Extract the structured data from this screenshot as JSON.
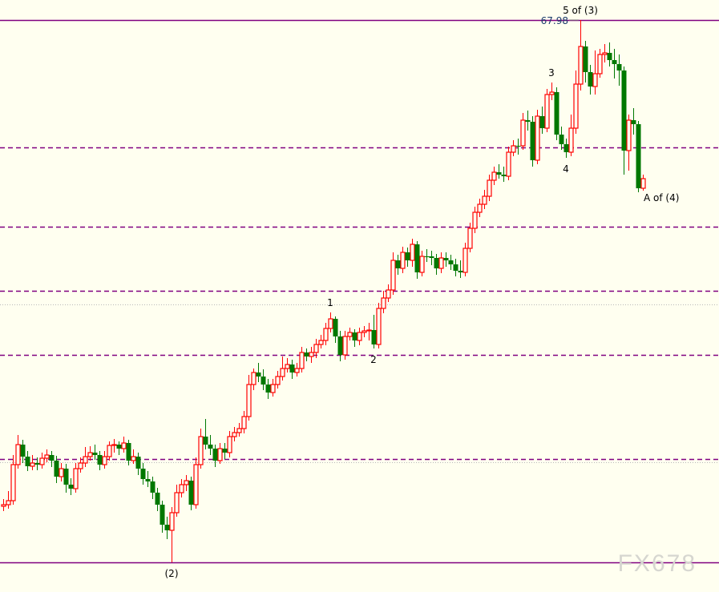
{
  "chart_data": {
    "type": "candlestick",
    "title": "",
    "grid": false,
    "colors": {
      "background": "#fffff0",
      "up": "#ff0000",
      "down": "#007800",
      "level_line": "#800080",
      "dotted_line": "#b8b8b8",
      "label_text": "#000000",
      "price_label": "#1a3a6a"
    },
    "candles": [
      [
        61.91,
        62.0,
        61.85,
        61.93
      ],
      [
        61.93,
        62.1,
        61.88,
        61.98
      ],
      [
        61.98,
        62.55,
        61.93,
        62.43
      ],
      [
        62.43,
        62.8,
        62.38,
        62.68
      ],
      [
        62.68,
        62.74,
        62.45,
        62.53
      ],
      [
        62.53,
        62.6,
        62.35,
        62.41
      ],
      [
        62.41,
        62.55,
        62.36,
        62.45
      ],
      [
        62.45,
        62.52,
        62.36,
        62.43
      ],
      [
        62.43,
        62.58,
        62.38,
        62.51
      ],
      [
        62.51,
        62.62,
        62.46,
        62.55
      ],
      [
        62.55,
        62.6,
        62.4,
        62.48
      ],
      [
        62.48,
        62.54,
        62.2,
        62.28
      ],
      [
        62.28,
        62.45,
        62.22,
        62.38
      ],
      [
        62.38,
        62.44,
        62.08,
        62.18
      ],
      [
        62.18,
        62.26,
        62.05,
        62.13
      ],
      [
        62.13,
        62.45,
        62.08,
        62.38
      ],
      [
        62.38,
        62.52,
        62.33,
        62.45
      ],
      [
        62.45,
        62.65,
        62.4,
        62.53
      ],
      [
        62.53,
        62.66,
        62.48,
        62.58
      ],
      [
        62.58,
        62.68,
        62.49,
        62.55
      ],
      [
        62.55,
        62.6,
        62.36,
        62.43
      ],
      [
        62.43,
        62.6,
        62.38,
        62.53
      ],
      [
        62.53,
        62.72,
        62.48,
        62.67
      ],
      [
        62.67,
        62.75,
        62.58,
        62.68
      ],
      [
        62.68,
        62.72,
        62.55,
        62.63
      ],
      [
        62.63,
        62.78,
        62.58,
        62.7
      ],
      [
        62.7,
        62.74,
        62.42,
        62.48
      ],
      [
        62.48,
        62.62,
        62.44,
        62.53
      ],
      [
        62.53,
        62.58,
        62.3,
        62.38
      ],
      [
        62.38,
        62.45,
        62.18,
        62.25
      ],
      [
        62.25,
        62.35,
        62.15,
        62.22
      ],
      [
        62.22,
        62.28,
        62.0,
        62.08
      ],
      [
        62.08,
        62.14,
        61.85,
        61.93
      ],
      [
        61.93,
        61.98,
        61.58,
        61.68
      ],
      [
        61.68,
        61.78,
        61.5,
        61.61
      ],
      [
        61.61,
        61.9,
        61.21,
        61.83
      ],
      [
        61.83,
        62.18,
        61.78,
        62.08
      ],
      [
        62.08,
        62.25,
        62.02,
        62.18
      ],
      [
        62.18,
        62.3,
        62.1,
        62.23
      ],
      [
        62.23,
        62.28,
        61.86,
        61.93
      ],
      [
        61.93,
        62.52,
        61.88,
        62.43
      ],
      [
        62.43,
        62.88,
        62.38,
        62.78
      ],
      [
        62.78,
        63.0,
        62.62,
        62.68
      ],
      [
        62.68,
        62.8,
        62.55,
        62.63
      ],
      [
        62.63,
        62.68,
        62.4,
        62.48
      ],
      [
        62.48,
        62.7,
        62.44,
        62.63
      ],
      [
        62.63,
        62.7,
        62.5,
        62.58
      ],
      [
        62.58,
        62.85,
        62.52,
        62.78
      ],
      [
        62.78,
        62.9,
        62.72,
        62.83
      ],
      [
        62.83,
        62.95,
        62.78,
        62.88
      ],
      [
        62.88,
        63.1,
        62.82,
        63.03
      ],
      [
        63.03,
        63.55,
        62.98,
        63.43
      ],
      [
        63.43,
        63.63,
        63.36,
        63.58
      ],
      [
        63.58,
        63.7,
        63.46,
        63.53
      ],
      [
        63.53,
        63.62,
        63.36,
        63.43
      ],
      [
        63.43,
        63.5,
        63.25,
        63.33
      ],
      [
        63.33,
        63.5,
        63.28,
        63.43
      ],
      [
        63.43,
        63.6,
        63.38,
        63.53
      ],
      [
        63.53,
        63.78,
        63.48,
        63.63
      ],
      [
        63.63,
        63.76,
        63.58,
        63.68
      ],
      [
        63.68,
        63.74,
        63.5,
        63.58
      ],
      [
        63.58,
        63.7,
        63.53,
        63.63
      ],
      [
        63.63,
        63.9,
        63.58,
        63.83
      ],
      [
        63.83,
        63.88,
        63.72,
        63.78
      ],
      [
        63.78,
        63.9,
        63.7,
        63.83
      ],
      [
        63.83,
        64.0,
        63.76,
        63.93
      ],
      [
        63.93,
        64.05,
        63.88,
        63.98
      ],
      [
        63.98,
        64.2,
        63.92,
        64.13
      ],
      [
        64.13,
        64.33,
        64.08,
        64.25
      ],
      [
        64.25,
        64.28,
        63.95,
        64.03
      ],
      [
        64.03,
        64.1,
        63.72,
        63.8
      ],
      [
        63.8,
        64.1,
        63.74,
        64.03
      ],
      [
        64.03,
        64.14,
        63.98,
        64.08
      ],
      [
        64.08,
        64.12,
        63.9,
        63.98
      ],
      [
        63.98,
        64.14,
        63.92,
        64.08
      ],
      [
        64.08,
        64.16,
        64.02,
        64.1
      ],
      [
        64.1,
        64.2,
        63.98,
        64.11
      ],
      [
        64.11,
        64.3,
        63.88,
        63.93
      ],
      [
        63.93,
        64.45,
        63.88,
        64.38
      ],
      [
        64.38,
        64.6,
        64.32,
        64.51
      ],
      [
        64.51,
        64.68,
        64.46,
        64.61
      ],
      [
        64.61,
        65.08,
        64.55,
        64.98
      ],
      [
        64.98,
        65.05,
        64.8,
        64.88
      ],
      [
        64.88,
        65.15,
        64.82,
        65.08
      ],
      [
        65.08,
        65.14,
        64.9,
        64.98
      ],
      [
        64.98,
        65.25,
        64.9,
        65.18
      ],
      [
        65.18,
        65.22,
        64.75,
        64.83
      ],
      [
        64.83,
        65.1,
        64.78,
        65.03
      ],
      [
        65.03,
        65.12,
        64.96,
        65.03
      ],
      [
        65.03,
        65.1,
        64.92,
        65.01
      ],
      [
        65.01,
        65.06,
        64.8,
        64.88
      ],
      [
        64.88,
        65.08,
        64.82,
        65.01
      ],
      [
        65.01,
        65.08,
        64.9,
        64.98
      ],
      [
        64.98,
        65.05,
        64.86,
        64.93
      ],
      [
        64.93,
        65.0,
        64.78,
        64.85
      ],
      [
        64.85,
        64.98,
        64.76,
        64.83
      ],
      [
        64.83,
        65.2,
        64.78,
        65.13
      ],
      [
        65.13,
        65.45,
        65.08,
        65.38
      ],
      [
        65.38,
        65.65,
        65.32,
        65.58
      ],
      [
        65.58,
        65.75,
        65.52,
        65.68
      ],
      [
        65.68,
        65.86,
        65.62,
        65.78
      ],
      [
        65.78,
        66.05,
        65.72,
        65.98
      ],
      [
        65.98,
        66.15,
        65.92,
        66.08
      ],
      [
        66.08,
        66.18,
        66.0,
        66.05
      ],
      [
        66.05,
        66.15,
        65.96,
        66.03
      ],
      [
        66.03,
        66.4,
        65.98,
        66.33
      ],
      [
        66.33,
        66.48,
        66.28,
        66.41
      ],
      [
        66.41,
        66.5,
        66.3,
        66.41
      ],
      [
        66.41,
        66.82,
        66.36,
        66.73
      ],
      [
        66.73,
        66.85,
        66.6,
        66.71
      ],
      [
        66.71,
        66.78,
        66.15,
        66.23
      ],
      [
        66.23,
        66.86,
        66.18,
        66.78
      ],
      [
        66.78,
        66.9,
        66.56,
        66.63
      ],
      [
        66.63,
        67.12,
        66.58,
        67.05
      ],
      [
        67.05,
        67.2,
        66.98,
        67.08
      ],
      [
        67.08,
        67.14,
        66.48,
        66.55
      ],
      [
        66.55,
        66.65,
        66.36,
        66.43
      ],
      [
        66.43,
        66.5,
        66.26,
        66.33
      ],
      [
        66.33,
        66.8,
        66.28,
        66.63
      ],
      [
        66.63,
        67.35,
        66.56,
        67.18
      ],
      [
        67.18,
        67.98,
        67.1,
        67.65
      ],
      [
        67.65,
        67.72,
        67.2,
        67.33
      ],
      [
        67.33,
        67.42,
        67.05,
        67.15
      ],
      [
        67.15,
        67.6,
        67.05,
        67.31
      ],
      [
        67.31,
        67.62,
        67.26,
        67.55
      ],
      [
        67.55,
        67.68,
        67.45,
        67.57
      ],
      [
        67.57,
        67.7,
        67.4,
        67.48
      ],
      [
        67.48,
        67.62,
        67.25,
        67.43
      ],
      [
        67.43,
        67.55,
        67.16,
        67.35
      ],
      [
        67.35,
        67.4,
        66.05,
        66.35
      ],
      [
        66.35,
        66.8,
        66.1,
        66.73
      ],
      [
        66.73,
        66.88,
        66.55,
        66.68
      ],
      [
        66.68,
        66.72,
        65.83,
        65.88
      ],
      [
        65.88,
        66.05,
        65.85,
        66.0
      ]
    ],
    "horizontal_lines": [
      {
        "price": 67.98,
        "style": "solid",
        "color": "#800080"
      },
      {
        "price": 66.39,
        "style": "dashed",
        "color": "#800080"
      },
      {
        "price": 65.4,
        "style": "dashed",
        "color": "#800080"
      },
      {
        "price": 64.6,
        "style": "dashed",
        "color": "#800080"
      },
      {
        "price": 64.43,
        "style": "dotted",
        "color": "#b8b8b8"
      },
      {
        "price": 63.8,
        "style": "dashed",
        "color": "#800080"
      },
      {
        "price": 62.5,
        "style": "dashed",
        "color": "#800080"
      },
      {
        "price": 62.46,
        "style": "dotted",
        "color": "#b8b8b8"
      },
      {
        "price": 61.21,
        "style": "solid",
        "color": "#800080"
      }
    ],
    "price_label": {
      "text": "67.98",
      "candle": 120
    },
    "wave_labels": [
      {
        "text": "(2)",
        "candle": 35,
        "position": "below"
      },
      {
        "text": "1",
        "candle": 68,
        "position": "above"
      },
      {
        "text": "2",
        "candle": 77,
        "position": "below"
      },
      {
        "text": "3",
        "candle": 114,
        "position": "above"
      },
      {
        "text": "4",
        "candle": 117,
        "position": "below"
      },
      {
        "text": "5 of (3)",
        "candle": 120,
        "position": "above"
      },
      {
        "text": "A of (4)",
        "candle": 133,
        "position": "below-right"
      }
    ]
  },
  "watermark": "FX678"
}
